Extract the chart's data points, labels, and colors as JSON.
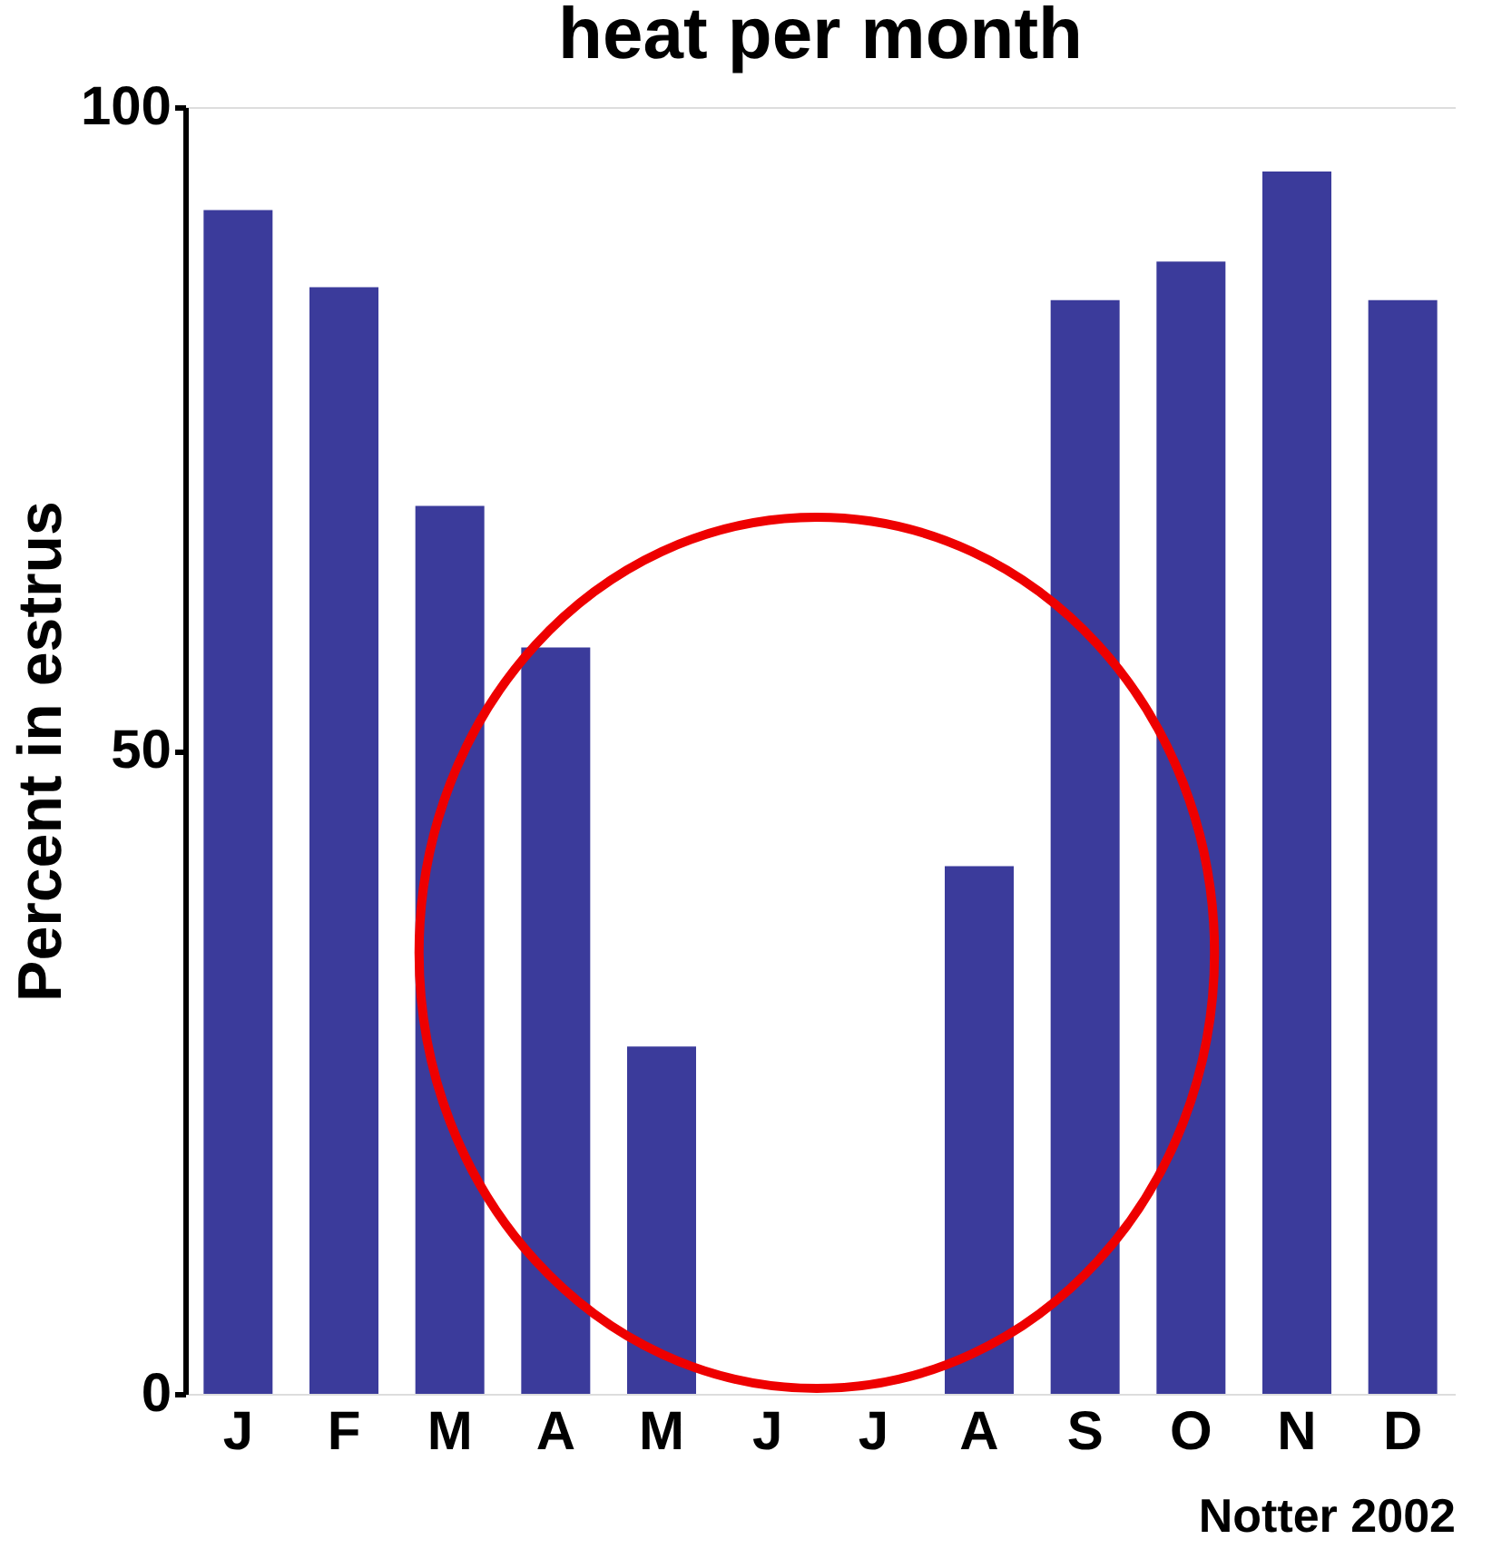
{
  "chart_data": {
    "type": "bar",
    "title": "heat per month",
    "ylabel": "Percent in estrus",
    "categories": [
      "J",
      "F",
      "M",
      "A",
      "M",
      "J",
      "J",
      "A",
      "S",
      "O",
      "N",
      "D"
    ],
    "values": [
      92,
      86,
      69,
      58,
      27,
      0,
      0,
      41,
      85,
      88,
      95,
      85
    ],
    "color": "#3b3b9b",
    "ylim": [
      0,
      100
    ],
    "yticks": [
      0,
      50,
      100
    ],
    "grid": false,
    "annotations": [
      "Notter 2002"
    ]
  }
}
